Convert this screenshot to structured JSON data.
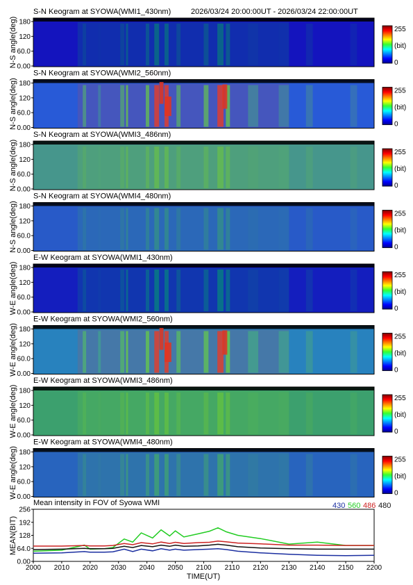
{
  "header": {
    "time_range": "2026/03/24 20:00:00UT - 2026/03/24 22:00:00UT"
  },
  "keograms": [
    {
      "title": "S-N Keogram at SYOWA(WMI1_430nm)",
      "ylabel": "N-S angle(deg)",
      "base": [
        20,
        20,
        190
      ],
      "ridge": [
        0,
        185,
        80
      ],
      "peak": 0.25
    },
    {
      "title": "S-N Keogram at SYOWA(WMI2_560nm)",
      "ylabel": "N-S angle(deg)",
      "base": [
        40,
        90,
        215
      ],
      "ridge": [
        230,
        60,
        40
      ],
      "peak": 1.0
    },
    {
      "title": "S-N Keogram at SYOWA(WMI3_486nm)",
      "ylabel": "N-S angle(deg)",
      "base": [
        70,
        150,
        140
      ],
      "ridge": [
        120,
        210,
        40
      ],
      "peak": 0.35
    },
    {
      "title": "S-N Keogram at SYOWA(WMI4_480nm)",
      "ylabel": "N-S angle(deg)",
      "base": [
        40,
        90,
        200
      ],
      "ridge": [
        60,
        180,
        90
      ],
      "peak": 0.3
    },
    {
      "title": "E-W Keogram at SYOWA(WMI1_430nm)",
      "ylabel": "W-E angle(deg)",
      "base": [
        20,
        30,
        190
      ],
      "ridge": [
        0,
        190,
        90
      ],
      "peak": 0.35
    },
    {
      "title": "E-W Keogram at SYOWA(WMI2_560nm)",
      "ylabel": "W-E angle(deg)",
      "base": [
        40,
        130,
        190
      ],
      "ridge": [
        230,
        60,
        40
      ],
      "peak": 1.0
    },
    {
      "title": "E-W Keogram at SYOWA(WMI3_486nm)",
      "ylabel": "W-E angle(deg)",
      "base": [
        60,
        160,
        110
      ],
      "ridge": [
        120,
        210,
        40
      ],
      "peak": 0.4
    },
    {
      "title": "E-W Keogram at SYOWA(WMI4_480nm)",
      "ylabel": "W-E angle(deg)",
      "base": [
        40,
        100,
        190
      ],
      "ridge": [
        80,
        200,
        70
      ],
      "peak": 0.4
    }
  ],
  "angle_ticks": [
    "180",
    "120",
    "60.0",
    "0.00"
  ],
  "colorbar": {
    "max_label": "255",
    "unit_label": "(bit)",
    "min_label": "0"
  },
  "colors": {
    "c430": "#1a2ea0",
    "c560": "#22cc22",
    "c486": "#cc2222",
    "c480": "#111111"
  },
  "chart_data": {
    "type": "line",
    "title": "Mean intensity in FOV of Syowa WMI",
    "xlabel": "TIME(UT)",
    "ylabel": "MEAN(BIT)",
    "xlim": [
      2000,
      2200
    ],
    "ylim": [
      0,
      256
    ],
    "x_ticks": [
      "2000",
      "2010",
      "2020",
      "2030",
      "2040",
      "2050",
      "2100",
      "2110",
      "2120",
      "2130",
      "2140",
      "2150",
      "2200"
    ],
    "y_ticks": [
      "256",
      "192",
      "128",
      "64.0",
      "0.00"
    ],
    "legend": [
      "430",
      "560",
      "486",
      "480"
    ],
    "x_minutes": [
      0,
      10,
      18,
      20,
      25,
      28,
      32,
      35,
      38,
      42,
      45,
      48,
      50,
      53,
      58,
      62,
      65,
      68,
      72,
      80,
      90,
      100,
      110,
      120
    ],
    "series": [
      {
        "name": "430",
        "color": "#1a2ea0",
        "values": [
          40,
          42,
          48,
          45,
          45,
          47,
          60,
          48,
          60,
          52,
          62,
          55,
          60,
          55,
          58,
          60,
          62,
          58,
          50,
          42,
          35,
          30,
          28,
          30
        ]
      },
      {
        "name": "560",
        "color": "#22cc22",
        "values": [
          50,
          55,
          80,
          60,
          62,
          68,
          110,
          95,
          140,
          115,
          155,
          125,
          150,
          120,
          135,
          148,
          165,
          145,
          128,
          112,
          85,
          95,
          78,
          78
        ]
      },
      {
        "name": "486",
        "color": "#cc2222",
        "values": [
          75,
          75,
          78,
          76,
          76,
          78,
          88,
          82,
          92,
          86,
          95,
          88,
          94,
          88,
          92,
          94,
          100,
          96,
          90,
          86,
          80,
          80,
          78,
          78
        ]
      },
      {
        "name": "480",
        "color": "#111111",
        "values": [
          58,
          60,
          64,
          62,
          62,
          64,
          74,
          68,
          78,
          72,
          80,
          74,
          80,
          74,
          76,
          80,
          84,
          80,
          72,
          66,
          62,
          60,
          60,
          60
        ]
      }
    ]
  }
}
